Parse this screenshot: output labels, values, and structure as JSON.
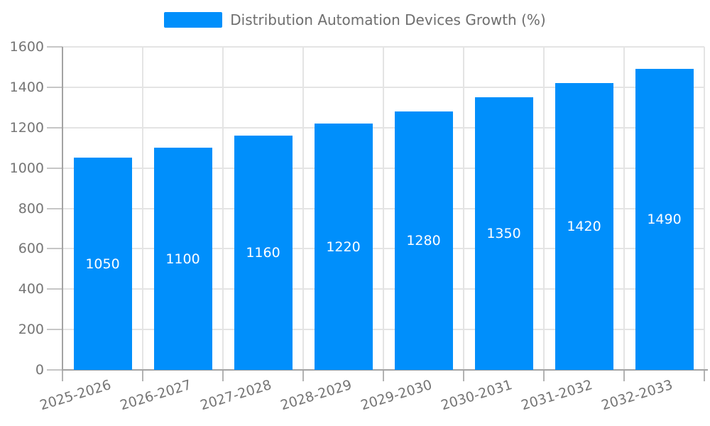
{
  "legend": {
    "label": "Distribution Automation Devices Growth (%)",
    "marker_color": "#008FFB"
  },
  "chart_data": {
    "type": "bar",
    "title": "Distribution Automation Devices Growth (%)",
    "categories": [
      "2025-2026",
      "2026-2027",
      "2027-2028",
      "2028-2029",
      "2029-2030",
      "2030-2031",
      "2031-2032",
      "2032-2033"
    ],
    "values": [
      1050,
      1100,
      1160,
      1220,
      1280,
      1350,
      1420,
      1490
    ],
    "yticks": [
      0,
      200,
      400,
      600,
      800,
      1000,
      1200,
      1400,
      1600
    ],
    "ylim": [
      0,
      1600
    ],
    "xlabel": "",
    "ylabel": "",
    "grid": true,
    "legend_position": "top",
    "bar_color": "#008FFB",
    "bar_label_color": "#FFFFFF",
    "axis_label_color": "#757575",
    "grid_color": "#E4E4E4",
    "axis_line_color": "#A3A3A3"
  }
}
